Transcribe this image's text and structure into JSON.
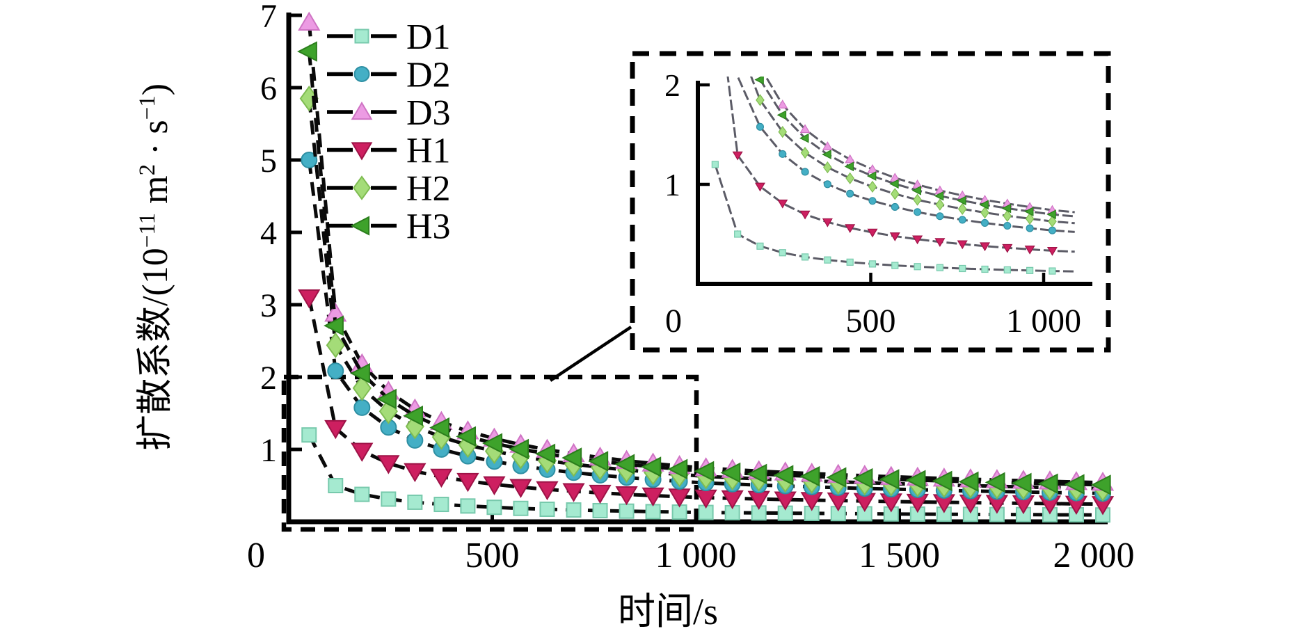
{
  "figure": {
    "background": "#ffffff",
    "axis_color": "#000000",
    "main_line_color": "#0a0a0a",
    "inset_line_color": "#5b5b66"
  },
  "chart_data": {
    "type": "line",
    "title": "",
    "xlabel": "时间/s",
    "ylabel": "扩散系数/(10−11 m2·s−1)",
    "ylabel_segments": [
      {
        "t": "扩散系数/(10",
        "sup": false
      },
      {
        "t": "−11",
        "sup": true
      },
      {
        "t": " m",
        "sup": false
      },
      {
        "t": "2",
        "sup": true
      },
      {
        "t": " · s",
        "sup": false
      },
      {
        "t": "−1",
        "sup": true
      },
      {
        "t": ")",
        "sup": false
      }
    ],
    "legend": {
      "position": "top-left",
      "entries": [
        "D1",
        "D2",
        "D3",
        "H1",
        "H2",
        "H3"
      ]
    },
    "main_axis": {
      "xlim": [
        0,
        2010
      ],
      "ylim": [
        0,
        7
      ],
      "xticks": [
        500,
        1000,
        1500,
        2000
      ],
      "xtick_labels": [
        "500",
        "1 000",
        "1 500",
        "2 000"
      ],
      "x_origin_label": "0",
      "yticks": [
        1,
        2,
        3,
        4,
        5,
        6,
        7
      ],
      "ytick_labels": [
        "1",
        "2",
        "3",
        "4",
        "5",
        "6",
        "7"
      ],
      "grid": false
    },
    "zoom_region": {
      "x": [
        0,
        1000
      ],
      "y": [
        0,
        2
      ]
    },
    "inset_axis": {
      "xlim": [
        0,
        1140
      ],
      "ylim": [
        0,
        2
      ],
      "xticks": [
        0,
        500,
        1000
      ],
      "xtick_labels": [
        "0",
        "500",
        "1 000"
      ],
      "yticks": [
        1,
        2
      ],
      "ytick_labels": [
        "1",
        "2"
      ],
      "marker_visible_max": 2.06,
      "data_tmax": 1025
    },
    "x": [
      50,
      115,
      180,
      245,
      310,
      375,
      440,
      505,
      570,
      635,
      700,
      765,
      830,
      895,
      960,
      1025,
      1090,
      1155,
      1220,
      1285,
      1350,
      1415,
      1480,
      1545,
      1610,
      1675,
      1740,
      1805,
      1870,
      1935,
      2000
    ],
    "series": [
      {
        "name": "D1",
        "marker": "square",
        "fill": "#A5EAD0",
        "edge": "#77C9AC",
        "size": 10,
        "values": [
          1.2,
          0.5,
          0.379,
          0.313,
          0.27,
          0.24,
          0.218,
          0.2,
          0.185,
          0.173,
          0.163,
          0.154,
          0.147,
          0.14,
          0.134,
          0.129,
          0.125,
          0.122,
          0.119,
          0.116,
          0.113,
          0.111,
          0.108,
          0.106,
          0.104,
          0.102,
          0.1,
          0.099,
          0.097,
          0.096,
          0.094
        ]
      },
      {
        "name": "H1",
        "marker": "triangle-down",
        "fill": "#CD1F60",
        "edge": "#9E1347",
        "size": 12.5,
        "values": [
          3.1,
          1.293,
          0.979,
          0.809,
          0.698,
          0.621,
          0.562,
          0.517,
          0.479,
          0.448,
          0.422,
          0.399,
          0.379,
          0.362,
          0.347,
          0.333,
          0.323,
          0.315,
          0.307,
          0.299,
          0.293,
          0.286,
          0.28,
          0.274,
          0.269,
          0.264,
          0.26,
          0.255,
          0.251,
          0.247,
          0.243
        ]
      },
      {
        "name": "D2",
        "marker": "circle",
        "fill": "#44AFC5",
        "edge": "#2E8FA3",
        "size": 11,
        "values": [
          5.0,
          2.085,
          1.578,
          1.305,
          1.126,
          1.001,
          0.907,
          0.834,
          0.773,
          0.722,
          0.68,
          0.644,
          0.612,
          0.584,
          0.559,
          0.537,
          0.522,
          0.508,
          0.495,
          0.483,
          0.472,
          0.461,
          0.452,
          0.443,
          0.434,
          0.426,
          0.419,
          0.412,
          0.405,
          0.398,
          0.392
        ]
      },
      {
        "name": "H2",
        "marker": "diamond",
        "fill": "#A4DC78",
        "edge": "#7FBC52",
        "size": 13,
        "values": [
          5.85,
          2.44,
          1.847,
          1.527,
          1.318,
          1.171,
          1.061,
          0.976,
          0.904,
          0.845,
          0.796,
          0.753,
          0.716,
          0.683,
          0.655,
          0.628,
          0.61,
          0.594,
          0.579,
          0.565,
          0.552,
          0.54,
          0.528,
          0.518,
          0.508,
          0.499,
          0.49,
          0.481,
          0.473,
          0.466,
          0.459
        ]
      },
      {
        "name": "D3",
        "marker": "triangle-up",
        "fill": "#EC9BE3",
        "edge": "#CF74C4",
        "size": 12.5,
        "values": [
          6.9,
          2.877,
          2.178,
          1.801,
          1.554,
          1.381,
          1.251,
          1.151,
          1.066,
          0.997,
          0.938,
          0.888,
          0.844,
          0.806,
          0.772,
          0.741,
          0.72,
          0.701,
          0.683,
          0.666,
          0.651,
          0.637,
          0.623,
          0.611,
          0.599,
          0.588,
          0.578,
          0.568,
          0.559,
          0.55,
          0.541
        ]
      },
      {
        "name": "H3",
        "marker": "triangle-left",
        "fill": "#3EA22B",
        "edge": "#2B7E1C",
        "size": 12.5,
        "values": [
          6.5,
          2.71,
          2.052,
          1.697,
          1.464,
          1.301,
          1.179,
          1.084,
          1.005,
          0.939,
          0.884,
          0.837,
          0.795,
          0.759,
          0.727,
          0.698,
          0.678,
          0.66,
          0.643,
          0.628,
          0.613,
          0.6,
          0.587,
          0.575,
          0.564,
          0.554,
          0.544,
          0.535,
          0.526,
          0.518,
          0.51
        ]
      }
    ],
    "legend_order": [
      "D1",
      "D2",
      "D3",
      "H1",
      "H2",
      "H3"
    ]
  }
}
